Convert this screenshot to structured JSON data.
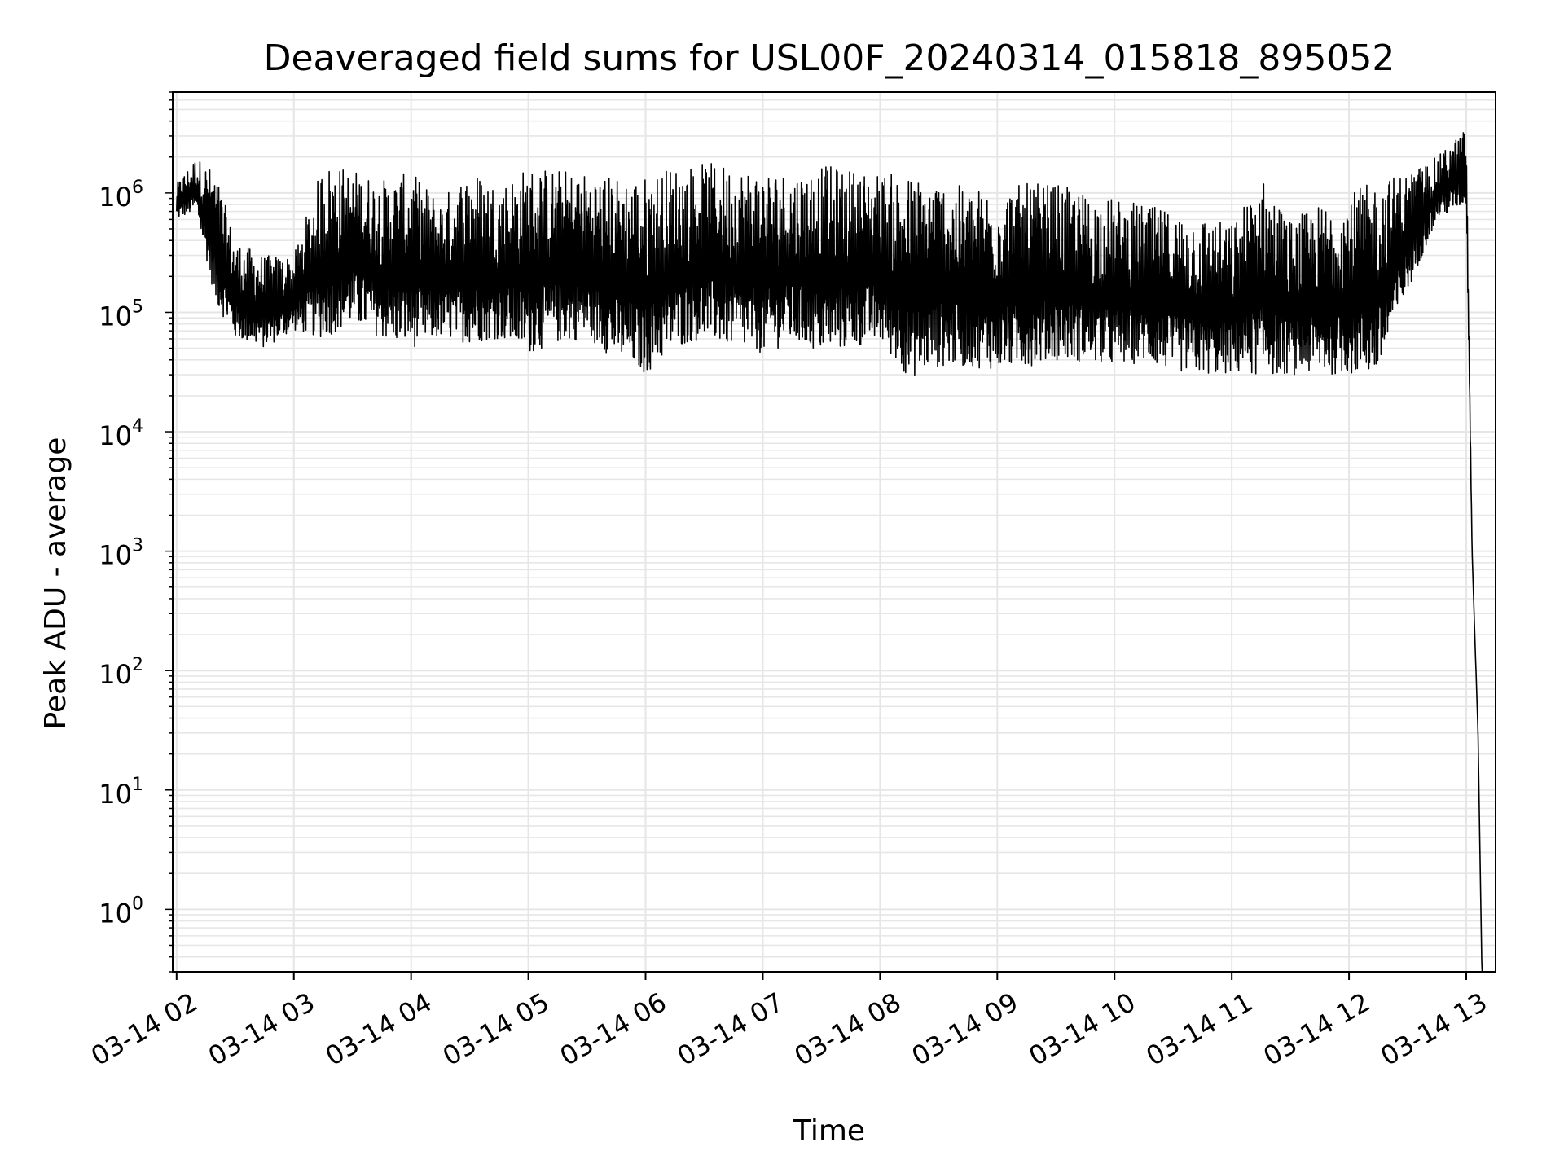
{
  "chart_data": {
    "type": "line",
    "title": "Deaveraged field sums for USL00F_20240314_015818_895052",
    "xlabel": "Time",
    "ylabel": "Peak ADU - average",
    "xscale": "time",
    "yscale": "log",
    "xlim": [
      "2024-03-14 01:58",
      "2024-03-14 13:15"
    ],
    "ylim": [
      0.3,
      7000000
    ],
    "grid": true,
    "legend": "none",
    "line_color": "#000000",
    "x_ticks": [
      {
        "label": "03-14 02",
        "value": "2024-03-14 02:00"
      },
      {
        "label": "03-14 03",
        "value": "2024-03-14 03:00"
      },
      {
        "label": "03-14 04",
        "value": "2024-03-14 04:00"
      },
      {
        "label": "03-14 05",
        "value": "2024-03-14 05:00"
      },
      {
        "label": "03-14 06",
        "value": "2024-03-14 06:00"
      },
      {
        "label": "03-14 07",
        "value": "2024-03-14 07:00"
      },
      {
        "label": "03-14 08",
        "value": "2024-03-14 08:00"
      },
      {
        "label": "03-14 09",
        "value": "2024-03-14 09:00"
      },
      {
        "label": "03-14 10",
        "value": "2024-03-14 10:00"
      },
      {
        "label": "03-14 11",
        "value": "2024-03-14 11:00"
      },
      {
        "label": "03-14 12",
        "value": "2024-03-14 12:00"
      },
      {
        "label": "03-14 13",
        "value": "2024-03-14 13:00"
      }
    ],
    "y_ticks": [
      {
        "base": "10",
        "exp": "0",
        "value": 1
      },
      {
        "base": "10",
        "exp": "1",
        "value": 10
      },
      {
        "base": "10",
        "exp": "2",
        "value": 100
      },
      {
        "base": "10",
        "exp": "3",
        "value": 1000
      },
      {
        "base": "10",
        "exp": "4",
        "value": 10000
      },
      {
        "base": "10",
        "exp": "5",
        "value": 100000
      },
      {
        "base": "10",
        "exp": "6",
        "value": 1000000
      }
    ],
    "series": [
      {
        "x": [
          "2024-03-14 02:00",
          "2024-03-14 02:10",
          "2024-03-14 02:20",
          "2024-03-14 02:30",
          "2024-03-14 02:45",
          "2024-03-14 03:00",
          "2024-03-14 03:15",
          "2024-03-14 03:30",
          "2024-03-14 03:45",
          "2024-03-14 04:00",
          "2024-03-14 04:15",
          "2024-03-14 04:30",
          "2024-03-14 04:45",
          "2024-03-14 05:00",
          "2024-03-14 05:15",
          "2024-03-14 05:30",
          "2024-03-14 05:45",
          "2024-03-14 06:00",
          "2024-03-14 06:15",
          "2024-03-14 06:30",
          "2024-03-14 06:45",
          "2024-03-14 07:00",
          "2024-03-14 07:15",
          "2024-03-14 07:30",
          "2024-03-14 07:45",
          "2024-03-14 08:00",
          "2024-03-14 08:15",
          "2024-03-14 08:30",
          "2024-03-14 08:45",
          "2024-03-14 09:00",
          "2024-03-14 09:15",
          "2024-03-14 09:30",
          "2024-03-14 09:45",
          "2024-03-14 10:00",
          "2024-03-14 10:15",
          "2024-03-14 10:30",
          "2024-03-14 10:45",
          "2024-03-14 11:00",
          "2024-03-14 11:15",
          "2024-03-14 11:30",
          "2024-03-14 11:45",
          "2024-03-14 12:00",
          "2024-03-14 12:15",
          "2024-03-14 12:30",
          "2024-03-14 12:45",
          "2024-03-14 13:00",
          "2024-03-14 13:03",
          "2024-03-14 13:06",
          "2024-03-14 13:08",
          "2024-03-14 13:10"
        ],
        "y_low": [
          600000,
          700000,
          120000,
          60000,
          50000,
          70000,
          60000,
          80000,
          60000,
          50000,
          60000,
          55000,
          60000,
          45000,
          55000,
          60000,
          40000,
          30000,
          50000,
          60000,
          50000,
          45000,
          55000,
          45000,
          50000,
          55000,
          28000,
          35000,
          35000,
          33000,
          35000,
          40000,
          38000,
          35000,
          38000,
          32000,
          30000,
          30000,
          30000,
          30000,
          30000,
          30000,
          30000,
          150000,
          600000,
          800000,
          1000,
          30,
          0.3,
          0.3
        ],
        "y_high": [
          1200000,
          2000000,
          1500000,
          400000,
          300000,
          300000,
          1800000,
          1600000,
          1300000,
          1500000,
          900000,
          1600000,
          1200000,
          1700000,
          1600000,
          1500000,
          1400000,
          1400000,
          1700000,
          1800000,
          1700000,
          1600000,
          1500000,
          1700000,
          1600000,
          1500000,
          1400000,
          1300000,
          1100000,
          1100000,
          1200000,
          1200000,
          1000000,
          900000,
          800000,
          700000,
          650000,
          550000,
          1400000,
          600000,
          800000,
          1000000,
          1300000,
          1500000,
          2000000,
          3500000,
          1000,
          30,
          0.3,
          0.3
        ]
      }
    ]
  }
}
